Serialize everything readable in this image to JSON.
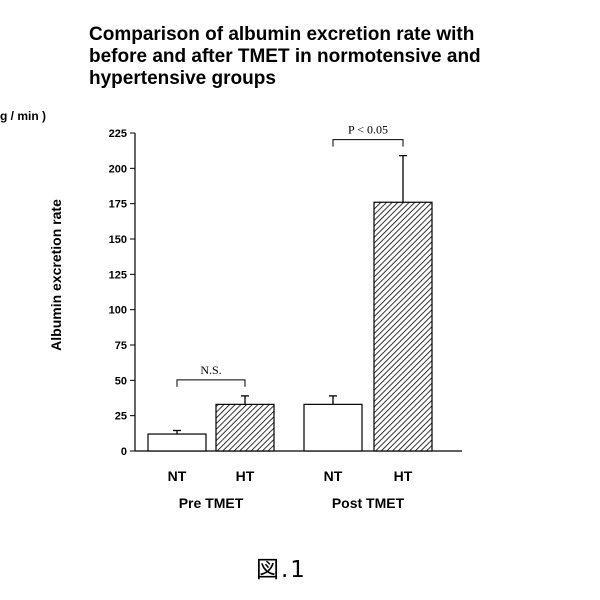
{
  "chart_data": {
    "type": "bar",
    "title_lines": [
      "Comparison of albumin excretion rate with",
      "before and after TMET in normotensive and",
      "hypertensive groups"
    ],
    "unit_label": "g / min )",
    "ylabel": "Albumin excretion rate",
    "xlabel": "",
    "ylim": [
      0,
      225
    ],
    "yticks": [
      0,
      25,
      50,
      75,
      100,
      125,
      150,
      175,
      200,
      225
    ],
    "grid": false,
    "groups": [
      {
        "label": "Pre TMET",
        "bars": [
          {
            "label": "NT",
            "value": 12,
            "error": 2.5,
            "fill": "white"
          },
          {
            "label": "HT",
            "value": 33,
            "error": 6,
            "fill": "hatched"
          }
        ],
        "annotation": "N.S."
      },
      {
        "label": "Post TMET",
        "bars": [
          {
            "label": "NT",
            "value": 33,
            "error": 6,
            "fill": "white"
          },
          {
            "label": "HT",
            "value": 176,
            "error": 33,
            "fill": "hatched"
          }
        ],
        "annotation": "P < 0.05"
      }
    ]
  },
  "figure_caption": "図.1"
}
